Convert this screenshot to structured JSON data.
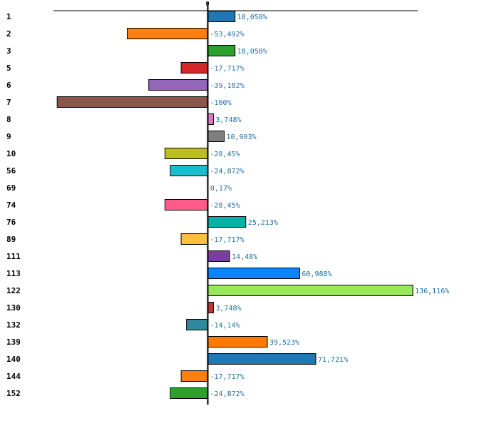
{
  "chart_data": {
    "type": "bar",
    "orientation": "horizontal",
    "title": "",
    "xlabel": "",
    "ylabel": "",
    "zero_tick_label": "0",
    "xlim": [
      -100,
      136.116
    ],
    "categories": [
      "1",
      "2",
      "3",
      "5",
      "6",
      "7",
      "8",
      "9",
      "10",
      "56",
      "69",
      "74",
      "76",
      "89",
      "111",
      "113",
      "122",
      "130",
      "132",
      "139",
      "140",
      "144",
      "152"
    ],
    "values": [
      18.058,
      -53.492,
      18.058,
      -17.717,
      -39.182,
      -100,
      3.748,
      10.903,
      -28.45,
      -24.872,
      0.17,
      -28.45,
      25.213,
      -17.717,
      14.48,
      60.988,
      136.116,
      3.748,
      -14.14,
      39.523,
      71.721,
      -17.717,
      -24.872
    ],
    "value_labels": [
      "18,058%",
      "-53,492%",
      "18,058%",
      "-17,717%",
      "-39,182%",
      "-100%",
      "3,748%",
      "10,903%",
      "-28,45%",
      "-24,872%",
      "0,17%",
      "-28,45%",
      "25,213%",
      "-17,717%",
      "14,48%",
      "60,988%",
      "136,116%",
      "3,748%",
      "-14,14%",
      "39,523%",
      "71,721%",
      "-17,717%",
      "-24,872%"
    ],
    "colors": [
      "#1f77b4",
      "#ff7f0e",
      "#2ca02c",
      "#d62728",
      "#9467bd",
      "#8c564b",
      "#e377c2",
      "#7f7f7f",
      "#bcbd22",
      "#17becf",
      "#ffffff",
      "#ff5a8a",
      "#00b3a4",
      "#ffbf40",
      "#7b3ea0",
      "#0a84ff",
      "#99e85a",
      "#c0392b",
      "#2e8b9e",
      "#ff7a00",
      "#1f77b4",
      "#ff7f0e",
      "#2ca02c"
    ]
  }
}
